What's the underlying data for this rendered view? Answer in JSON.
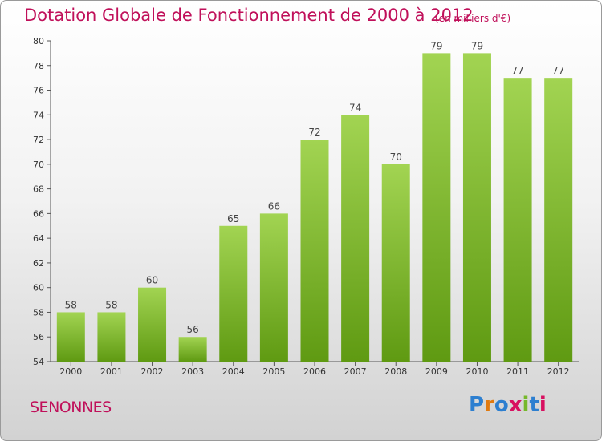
{
  "title": "Dotation Globale de Fonctionnement de 2000 à 2012",
  "unit": "(en milliers d'€)",
  "commune": "SENONNES",
  "brand": "Proxiti",
  "colors": {
    "title": "#c0105a",
    "bar_top": "#a2d452",
    "bar_bottom": "#5f9a12"
  },
  "chart_data": {
    "type": "bar",
    "categories": [
      "2000",
      "2001",
      "2002",
      "2003",
      "2004",
      "2005",
      "2006",
      "2007",
      "2008",
      "2009",
      "2010",
      "2011",
      "2012"
    ],
    "values": [
      58,
      58,
      60,
      56,
      65,
      66,
      72,
      74,
      70,
      79,
      79,
      77,
      77
    ],
    "ylim": [
      54,
      80
    ],
    "yticks": [
      54,
      56,
      58,
      60,
      62,
      64,
      66,
      68,
      70,
      72,
      74,
      76,
      78,
      80
    ],
    "grid": false,
    "legend": "none"
  }
}
